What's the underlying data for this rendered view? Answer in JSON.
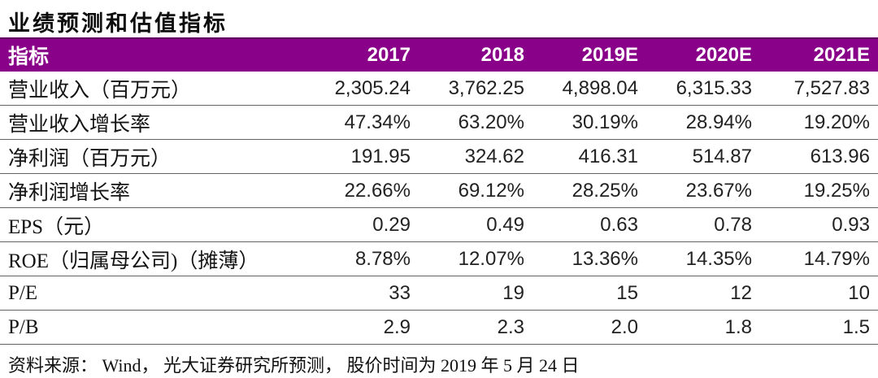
{
  "title": "业绩预测和估值指标",
  "colors": {
    "header_bg": "#8a0189",
    "header_text": "#ffffff",
    "row_border": "#636363"
  },
  "table": {
    "columns": {
      "label": "指标",
      "c1": "2017",
      "c2": "2018",
      "c3": "2019E",
      "c4": "2020E",
      "c5": "2021E"
    },
    "rows": [
      {
        "label": "营业收入（百万元）",
        "v1": "2,305.24",
        "v2": "3,762.25",
        "v3": "4,898.04",
        "v4": "6,315.33",
        "v5": "7,527.83"
      },
      {
        "label": "营业收入增长率",
        "v1": "47.34%",
        "v2": "63.20%",
        "v3": "30.19%",
        "v4": "28.94%",
        "v5": "19.20%"
      },
      {
        "label": "净利润（百万元）",
        "v1": "191.95",
        "v2": "324.62",
        "v3": "416.31",
        "v4": "514.87",
        "v5": "613.96"
      },
      {
        "label": "净利润增长率",
        "v1": "22.66%",
        "v2": "69.12%",
        "v3": "28.25%",
        "v4": "23.67%",
        "v5": "19.25%"
      },
      {
        "label": "EPS（元）",
        "v1": "0.29",
        "v2": "0.49",
        "v3": "0.63",
        "v4": "0.78",
        "v5": "0.93"
      },
      {
        "label": "ROE（归属母公司)（摊薄）",
        "v1": "8.78%",
        "v2": "12.07%",
        "v3": "13.36%",
        "v4": "14.35%",
        "v5": "14.79%"
      },
      {
        "label": "P/E",
        "v1": "33",
        "v2": "19",
        "v3": "15",
        "v4": "12",
        "v5": "10"
      },
      {
        "label": "P/B",
        "v1": "2.9",
        "v2": "2.3",
        "v3": "2.0",
        "v4": "1.8",
        "v5": "1.5"
      }
    ]
  },
  "footer": "资料来源： Wind， 光大证券研究所预测， 股价时间为 2019 年 5 月 24 日"
}
